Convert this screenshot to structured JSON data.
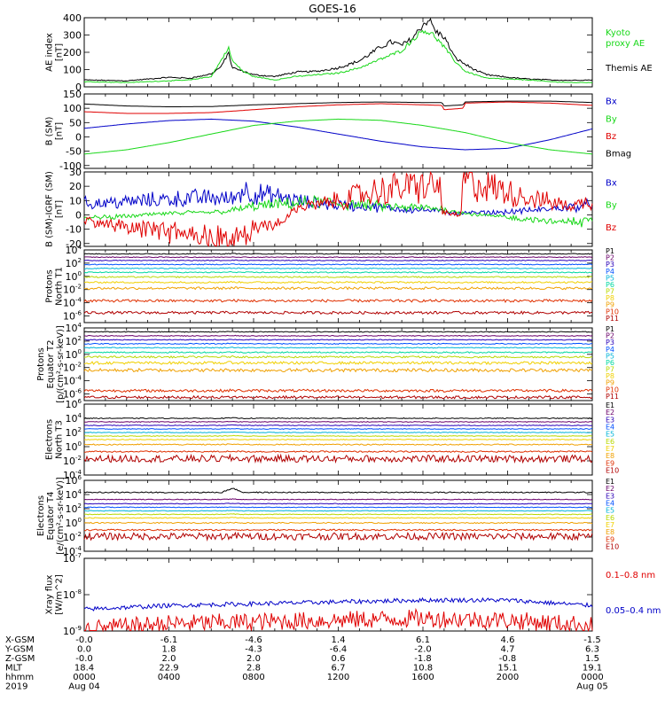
{
  "title": "GOES-16",
  "colors": {
    "axis": "#000000",
    "black": "#000000",
    "red": "#e00000",
    "green": "#18d818",
    "blue": "#0000c8",
    "p": [
      "#000000",
      "#6a006a",
      "#2a00b8",
      "#0050ff",
      "#00b4d8",
      "#00d8a0",
      "#b8d800",
      "#f0d000",
      "#f0a000",
      "#e03000",
      "#b00000"
    ]
  },
  "time_axis": {
    "rows": [
      {
        "label": "X-GSM",
        "values": [
          "-0.0",
          "-6.1",
          "-4.6",
          "1.4",
          "6.1",
          "4.6",
          "-1.5"
        ]
      },
      {
        "label": "Y-GSM",
        "values": [
          "0.0",
          "1.8",
          "-4.3",
          "-6.4",
          "-2.0",
          "4.7",
          "6.3"
        ]
      },
      {
        "label": "Z-GSM",
        "values": [
          "-0.0",
          "2.0",
          "2.0",
          "0.6",
          "-1.8",
          "-0.8",
          "1.5"
        ]
      },
      {
        "label": "MLT",
        "values": [
          "18.4",
          "22.9",
          "2.8",
          "6.7",
          "10.8",
          "15.1",
          "19.1"
        ]
      },
      {
        "label": "hhmm",
        "values": [
          "0000",
          "0400",
          "0800",
          "1200",
          "1600",
          "2000",
          "0000"
        ]
      },
      {
        "label": "2019",
        "values": [
          "Aug 04",
          "",
          "",
          "",
          "",
          "",
          "Aug 05"
        ]
      }
    ]
  },
  "chart_data": [
    {
      "type": "line",
      "name": "ae",
      "ylabel": [
        "AE index",
        "[nT]"
      ],
      "ylim": [
        0,
        400
      ],
      "log": false,
      "ticks": [
        "0",
        "100",
        "200",
        "300",
        "400"
      ],
      "tick_values": [
        0,
        100,
        200,
        300,
        400
      ],
      "legend": [
        {
          "text": "Kyoto",
          "color": "green"
        },
        {
          "text": "proxy AE",
          "color": "green"
        },
        {
          "text": "Themis AE",
          "color": "black"
        }
      ],
      "series": [
        {
          "color": "black",
          "noise": 0.06,
          "x": [
            0,
            2,
            4,
            5,
            6,
            6.5,
            6.8,
            7,
            7.5,
            8,
            9,
            10,
            11,
            12,
            13,
            14,
            14.5,
            15,
            15.5,
            16,
            16.3,
            16.6,
            17,
            17.5,
            18,
            18.5,
            19,
            20,
            21,
            22,
            23,
            24
          ],
          "y": [
            40,
            35,
            55,
            50,
            75,
            120,
            200,
            110,
            90,
            70,
            60,
            85,
            90,
            110,
            150,
            230,
            260,
            240,
            280,
            360,
            390,
            320,
            290,
            170,
            130,
            95,
            70,
            55,
            45,
            40,
            38,
            40
          ]
        },
        {
          "color": "green",
          "noise": 0.05,
          "x": [
            0,
            2,
            4,
            5,
            6,
            6.3,
            6.6,
            6.8,
            7,
            7.5,
            8,
            9,
            10,
            11,
            12,
            13,
            14,
            15,
            15.5,
            16,
            16.5,
            17,
            17.5,
            18,
            19,
            20,
            21,
            22,
            23,
            24
          ],
          "y": [
            30,
            25,
            35,
            40,
            60,
            120,
            180,
            230,
            150,
            90,
            60,
            40,
            60,
            70,
            80,
            110,
            160,
            210,
            270,
            330,
            300,
            230,
            150,
            90,
            50,
            45,
            40,
            30,
            25,
            25
          ]
        }
      ]
    },
    {
      "type": "line",
      "name": "bsm",
      "ylabel": [
        "B (SM)",
        "[nT]"
      ],
      "ylim": [
        -110,
        150
      ],
      "log": false,
      "ticks": [
        "-100",
        "-50",
        "0",
        "50",
        "100",
        "150"
      ],
      "tick_values": [
        -100,
        -50,
        0,
        50,
        100,
        150
      ],
      "legend": [
        {
          "text": "Bx",
          "color": "blue"
        },
        {
          "text": "By",
          "color": "green"
        },
        {
          "text": "Bz",
          "color": "red"
        },
        {
          "text": "Bmag",
          "color": "black"
        }
      ],
      "series": [
        {
          "color": "black",
          "noise": 0,
          "x": [
            0,
            2,
            4,
            6,
            8,
            10,
            12,
            14,
            15,
            16,
            16.9,
            17,
            17.9,
            18,
            20,
            22,
            24
          ],
          "y": [
            115,
            108,
            105,
            106,
            112,
            116,
            120,
            122,
            121,
            120,
            120,
            108,
            112,
            122,
            125,
            125,
            120
          ]
        },
        {
          "color": "red",
          "noise": 0,
          "x": [
            0,
            2,
            4,
            6,
            8,
            10,
            12,
            14,
            15,
            16,
            16.9,
            17,
            17.9,
            18,
            20,
            22,
            24
          ],
          "y": [
            88,
            82,
            82,
            85,
            95,
            105,
            112,
            116,
            114,
            112,
            110,
            95,
            100,
            118,
            122,
            118,
            110
          ]
        },
        {
          "color": "blue",
          "noise": 0,
          "x": [
            0,
            2,
            4,
            6,
            8,
            10,
            12,
            14,
            16,
            18,
            20,
            22,
            24
          ],
          "y": [
            30,
            45,
            57,
            62,
            55,
            35,
            10,
            -15,
            -35,
            -45,
            -40,
            -10,
            28
          ]
        },
        {
          "color": "green",
          "noise": 0,
          "x": [
            0,
            2,
            4,
            6,
            8,
            10,
            12,
            14,
            16,
            18,
            20,
            22,
            24
          ],
          "y": [
            -60,
            -45,
            -20,
            10,
            40,
            55,
            62,
            58,
            40,
            15,
            -20,
            -45,
            -60
          ]
        }
      ]
    },
    {
      "type": "line",
      "name": "bigrf",
      "ylabel": [
        "B (SM)-IGRF (SM)",
        "[nT]"
      ],
      "ylim": [
        -22,
        30
      ],
      "log": false,
      "ticks": [
        "-20",
        "-10",
        "0",
        "10",
        "20",
        "30"
      ],
      "tick_values": [
        -20,
        -10,
        0,
        10,
        20,
        30
      ],
      "legend": [
        {
          "text": "Bx",
          "color": "blue"
        },
        {
          "text": "By",
          "color": "green"
        },
        {
          "text": "Bz",
          "color": "red"
        }
      ],
      "series": [
        {
          "color": "blue",
          "noise": 0.5,
          "x": [
            0,
            2,
            4,
            6,
            7,
            7.5,
            8,
            9,
            10,
            11,
            12,
            13,
            14,
            15,
            16.5,
            17,
            17.8,
            18,
            20,
            22,
            24
          ],
          "y": [
            8,
            9,
            11,
            12,
            11,
            18,
            15,
            13,
            10,
            8,
            7,
            6,
            5,
            4,
            3,
            2,
            1,
            1,
            2,
            4,
            7
          ]
        },
        {
          "color": "green",
          "noise": 0.5,
          "x": [
            0,
            2,
            4,
            6,
            7,
            8,
            9,
            10,
            11,
            12,
            13,
            14,
            15,
            16,
            17,
            18,
            20,
            22,
            24
          ],
          "y": [
            -2,
            -1,
            1,
            2,
            3,
            6,
            7,
            8,
            9,
            8,
            7,
            6,
            5,
            5,
            4,
            1,
            -2,
            -4,
            -6
          ]
        },
        {
          "color": "red",
          "noise": 0.6,
          "x": [
            0,
            2,
            4,
            6,
            7,
            7.5,
            8,
            9,
            9.5,
            10,
            11,
            12,
            13,
            14,
            15,
            16,
            16.8,
            16.9,
            17.8,
            17.9,
            18,
            19,
            20,
            21,
            22,
            23,
            24
          ],
          "y": [
            -4,
            -8,
            -13,
            -17,
            -19,
            -17,
            -10,
            -6,
            -3,
            5,
            7,
            10,
            14,
            17,
            19,
            20,
            20,
            2,
            0,
            27,
            25,
            20,
            16,
            12,
            9,
            6,
            10
          ]
        }
      ]
    },
    {
      "type": "line",
      "name": "pn",
      "ylabel": [
        "Protons",
        "North T1"
      ],
      "ylim": [
        -7,
        4
      ],
      "log": true,
      "ticks": [
        "10^-6",
        "10^-4",
        "10^-2",
        "10^0",
        "10^2",
        "10^4"
      ],
      "tick_values": [
        -6,
        -4,
        -2,
        0,
        2,
        4
      ],
      "legend": [
        {
          "text": "P1",
          "color": "p0"
        },
        {
          "text": "P2",
          "color": "p1"
        },
        {
          "text": "P3",
          "color": "p2"
        },
        {
          "text": "P4",
          "color": "p3"
        },
        {
          "text": "P5",
          "color": "p4"
        },
        {
          "text": "P6",
          "color": "p5"
        },
        {
          "text": "P7",
          "color": "p6"
        },
        {
          "text": "P8",
          "color": "p7"
        },
        {
          "text": "P9",
          "color": "p8"
        },
        {
          "text": "P10",
          "color": "p9"
        },
        {
          "text": "P11",
          "color": "p10"
        }
      ],
      "levels": [
        3.4,
        2.9,
        2.4,
        1.8,
        1.2,
        0.6,
        -0.1,
        -0.9,
        -1.8,
        -3.7,
        -5.5
      ],
      "level_colors": [
        "p0",
        "p1",
        "p2",
        "p3",
        "p4",
        "p5",
        "p6",
        "p7",
        "p8",
        "p9",
        "p10"
      ],
      "level_noise": [
        0.06,
        0.06,
        0.06,
        0.07,
        0.07,
        0.08,
        0.1,
        0.12,
        0.18,
        0.2,
        0.2
      ]
    },
    {
      "type": "line",
      "name": "pe",
      "ylabel": [
        "Protons",
        "Equator T2",
        "[p/(cm²-s-sr-keV)]"
      ],
      "ylim": [
        -7,
        4
      ],
      "log": true,
      "ticks": [
        "10^-6",
        "10^-4",
        "10^-2",
        "10^0",
        "10^2",
        "10^4"
      ],
      "tick_values": [
        -6,
        -4,
        -2,
        0,
        2,
        4
      ],
      "legend": [
        {
          "text": "P1",
          "color": "p0"
        },
        {
          "text": "P2",
          "color": "p1"
        },
        {
          "text": "P3",
          "color": "p2"
        },
        {
          "text": "P4",
          "color": "p3"
        },
        {
          "text": "P5",
          "color": "p4"
        },
        {
          "text": "P6",
          "color": "p5"
        },
        {
          "text": "P7",
          "color": "p6"
        },
        {
          "text": "P8",
          "color": "p7"
        },
        {
          "text": "P9",
          "color": "p8"
        },
        {
          "text": "P10",
          "color": "p9"
        },
        {
          "text": "P11",
          "color": "p10"
        }
      ],
      "levels": [
        3.4,
        2.8,
        2.2,
        1.6,
        1.0,
        0.3,
        -0.4,
        -1.3,
        -2.4,
        -5.5,
        -6.5
      ],
      "level_colors": [
        "p0",
        "p1",
        "p2",
        "p3",
        "p4",
        "p5",
        "p6",
        "p7",
        "p8",
        "p9",
        "p10"
      ],
      "level_noise": [
        0.06,
        0.06,
        0.06,
        0.07,
        0.07,
        0.1,
        0.14,
        0.2,
        0.25,
        0.2,
        0.2
      ]
    },
    {
      "type": "line",
      "name": "en",
      "ylabel": [
        "Electrons",
        "North T3"
      ],
      "ylim": [
        -4,
        6
      ],
      "log": true,
      "ticks": [
        "10^-4",
        "10^-2",
        "10^0",
        "10^2",
        "10^4",
        "10^6"
      ],
      "tick_values": [
        -4,
        -2,
        0,
        2,
        4,
        6
      ],
      "legend": [
        {
          "text": "E1",
          "color": "p0"
        },
        {
          "text": "E2",
          "color": "p1"
        },
        {
          "text": "E3",
          "color": "p2"
        },
        {
          "text": "E4",
          "color": "p3"
        },
        {
          "text": "E5",
          "color": "p4"
        },
        {
          "text": "E6",
          "color": "p6"
        },
        {
          "text": "E7",
          "color": "p7"
        },
        {
          "text": "E8",
          "color": "p8"
        },
        {
          "text": "E9",
          "color": "p9"
        },
        {
          "text": "E10",
          "color": "p10"
        }
      ],
      "levels": [
        4.0,
        3.5,
        3.0,
        2.5,
        2.0,
        1.5,
        1.0,
        0.3,
        -0.7,
        -1.7
      ],
      "level_colors": [
        "p0",
        "p1",
        "p2",
        "p3",
        "p4",
        "p6",
        "p7",
        "p8",
        "p9",
        "p10"
      ],
      "level_noise": [
        0.06,
        0.05,
        0.05,
        0.05,
        0.05,
        0.05,
        0.06,
        0.08,
        0.1,
        0.5
      ]
    },
    {
      "type": "line",
      "name": "ee",
      "ylabel": [
        "Electrons",
        "Equator T4",
        "[e/(cm²-s-sr-keV)]"
      ],
      "ylim": [
        -4,
        6
      ],
      "log": true,
      "ticks": [
        "10^-4",
        "10^-2",
        "10^0",
        "10^2",
        "10^4",
        "10^6"
      ],
      "tick_values": [
        -4,
        -2,
        0,
        2,
        4,
        6
      ],
      "legend": [
        {
          "text": "E1",
          "color": "p0"
        },
        {
          "text": "E2",
          "color": "p1"
        },
        {
          "text": "E3",
          "color": "p2"
        },
        {
          "text": "E4",
          "color": "p3"
        },
        {
          "text": "E5",
          "color": "p4"
        },
        {
          "text": "E6",
          "color": "p6"
        },
        {
          "text": "E7",
          "color": "p7"
        },
        {
          "text": "E8",
          "color": "p8"
        },
        {
          "text": "E9",
          "color": "p9"
        },
        {
          "text": "E10",
          "color": "p10"
        }
      ],
      "levels": [
        4.3,
        3.3,
        2.7,
        2.2,
        1.7,
        1.2,
        0.7,
        0.0,
        -1.0,
        -1.9
      ],
      "level_colors": [
        "p0",
        "p1",
        "p2",
        "p3",
        "p4",
        "p6",
        "p7",
        "p8",
        "p9",
        "p10"
      ],
      "level_noise": [
        0.08,
        0.05,
        0.05,
        0.05,
        0.05,
        0.05,
        0.06,
        0.08,
        0.1,
        0.5
      ]
    },
    {
      "type": "line",
      "name": "xray",
      "ylabel": [
        "Xray flux",
        "[W/m^2]"
      ],
      "ylim": [
        -9,
        -7
      ],
      "log": true,
      "ticks": [
        "10^-9",
        "10^-8",
        "10^-7"
      ],
      "tick_values": [
        -9,
        -8,
        -7
      ],
      "legend": [
        {
          "text": "0.1–0.8 nm",
          "color": "red"
        },
        {
          "text": "0.05–0.4 nm",
          "color": "blue"
        }
      ],
      "series": [
        {
          "color": "blue",
          "noise": 0.06,
          "x": [
            0,
            4,
            8,
            12,
            16,
            20,
            24
          ],
          "y": [
            -8.4,
            -8.3,
            -8.25,
            -8.2,
            -8.15,
            -8.15,
            -8.3
          ]
        },
        {
          "color": "red",
          "noise": 0.25,
          "x": [
            0,
            4,
            8,
            12,
            16,
            20,
            24
          ],
          "y": [
            -8.95,
            -8.8,
            -8.75,
            -8.7,
            -8.65,
            -8.7,
            -8.85
          ]
        }
      ]
    }
  ]
}
